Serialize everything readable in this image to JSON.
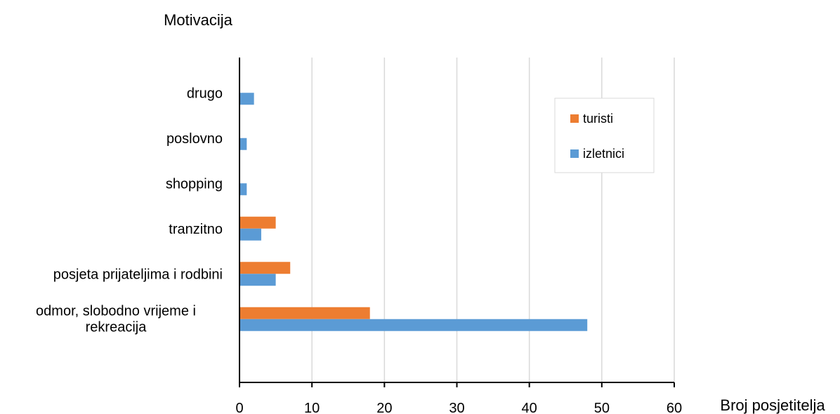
{
  "chart_data": {
    "type": "bar",
    "orientation": "horizontal",
    "ylabel": "Motivacija",
    "xlabel": "Broj posjetitelja",
    "categories": [
      "odmor, slobodno vrijeme i rekreacija",
      "posjeta prijateljima i rodbini",
      "tranzitno",
      "shopping",
      "poslovno",
      "drugo"
    ],
    "series": [
      {
        "name": "izletnici",
        "color": "#5B9BD5",
        "values": [
          48,
          5,
          3,
          1,
          1,
          2
        ]
      },
      {
        "name": "turisti",
        "color": "#ED7D31",
        "values": [
          18,
          7,
          5,
          0,
          0,
          0
        ]
      }
    ],
    "xlim": [
      0,
      60
    ],
    "xticks": [
      "0",
      "10",
      "20",
      "30",
      "40",
      "50",
      "60"
    ],
    "grid": true,
    "legend": {
      "position": "right",
      "entries": [
        "turisti",
        "izletnici"
      ]
    }
  }
}
